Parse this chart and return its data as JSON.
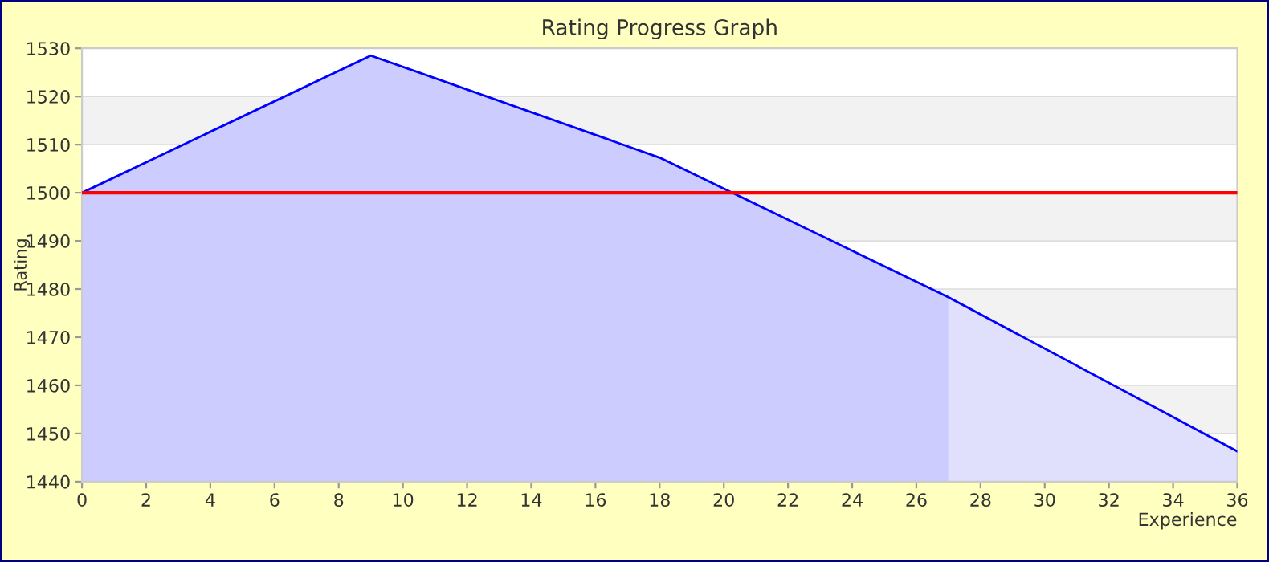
{
  "chart_data": {
    "type": "area",
    "title": "Rating Progress Graph",
    "xlabel": "Experience",
    "ylabel": "Rating",
    "series": [
      {
        "color": "#ccccff",
        "x": [
          0,
          9,
          18,
          27
        ],
        "values": [
          1500,
          1528.5,
          1507.3,
          1478.3
        ]
      },
      {
        "color": "#e0e0fc",
        "x": [
          27,
          36
        ],
        "values": [
          1478.3,
          1446.3
        ]
      },
      {
        "type": "line",
        "color": "#0000ff",
        "x": [
          0,
          9,
          18,
          27,
          36
        ],
        "values": [
          1500,
          1528.5,
          1507.3,
          1478.3,
          1446.3
        ]
      }
    ],
    "ref_lines": [
      {
        "axis": "y",
        "value": 1500,
        "color": "#ff0000"
      }
    ],
    "xlim": [
      0,
      36
    ],
    "xticks": [
      0,
      2,
      4,
      6,
      8,
      10,
      12,
      14,
      16,
      18,
      20,
      22,
      24,
      26,
      28,
      30,
      32,
      34,
      36
    ],
    "ylim": [
      1440,
      1530
    ],
    "yticks": [
      1440,
      1450,
      1460,
      1470,
      1480,
      1490,
      1500,
      1510,
      1520,
      1530
    ],
    "grid": "y",
    "legend": false
  }
}
